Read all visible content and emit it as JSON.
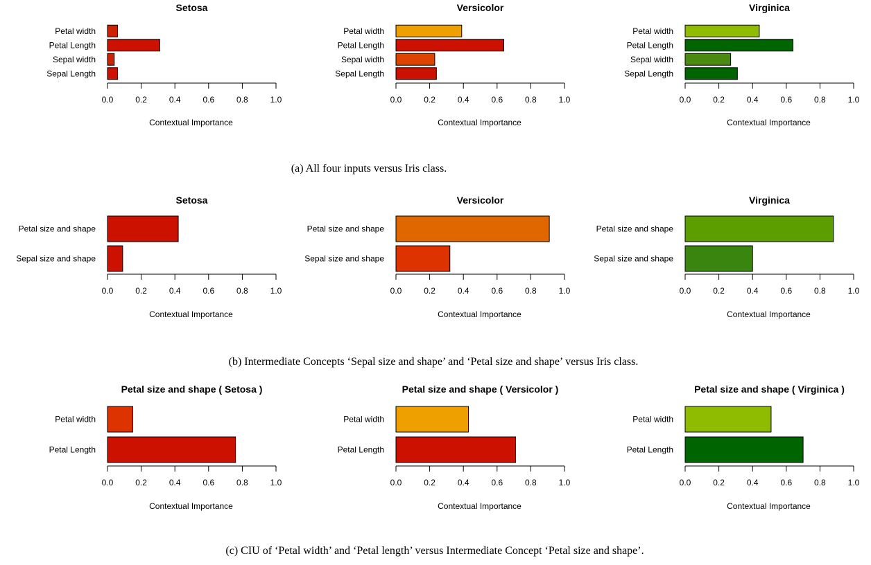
{
  "rows": [
    {
      "caption": "(a) All four inputs versus Iris class.",
      "charts": [
        {
          "title": "Setosa",
          "panel_id": "a-setosa"
        },
        {
          "title": "Versicolor",
          "panel_id": "a-versicolor"
        },
        {
          "title": "Virginica",
          "panel_id": "a-virginica"
        }
      ]
    },
    {
      "caption": "(b) Intermediate Concepts ‘Sepal size and shape’ and ‘Petal size and shape’ versus Iris class.",
      "charts": [
        {
          "title": "Setosa",
          "panel_id": "b-setosa"
        },
        {
          "title": "Versicolor",
          "panel_id": "b-versicolor"
        },
        {
          "title": "Virginica",
          "panel_id": "b-virginica"
        }
      ]
    },
    {
      "caption": "(c) CIU of ‘Petal width’ and ‘Petal length’ versus Intermediate Concept ‘Petal size and shape’.",
      "charts": [
        {
          "title": "Petal size and shape ( Setosa )",
          "panel_id": "c-setosa"
        },
        {
          "title": "Petal size and shape ( Versicolor )",
          "panel_id": "c-versicolor"
        },
        {
          "title": "Petal size and shape ( Virginica )",
          "panel_id": "c-virginica"
        }
      ]
    }
  ],
  "chart_data": [
    {
      "type": "bar",
      "orientation": "horizontal",
      "title": "Setosa",
      "xlabel": "Contextual Importance",
      "xlim": [
        0,
        1
      ],
      "ticks": [
        "0.0",
        "0.2",
        "0.4",
        "0.6",
        "0.8",
        "1.0"
      ],
      "categories": [
        "Petal width",
        "Petal Length",
        "Sepal width",
        "Sepal Length"
      ],
      "values": [
        0.06,
        0.31,
        0.04,
        0.06
      ],
      "colors": [
        "#cc2200",
        "#cc1100",
        "#cc2200",
        "#cc1100"
      ]
    },
    {
      "type": "bar",
      "orientation": "horizontal",
      "title": "Versicolor",
      "xlabel": "Contextual Importance",
      "xlim": [
        0,
        1
      ],
      "ticks": [
        "0.0",
        "0.2",
        "0.4",
        "0.6",
        "0.8",
        "1.0"
      ],
      "categories": [
        "Petal width",
        "Petal Length",
        "Sepal width",
        "Sepal Length"
      ],
      "values": [
        0.39,
        0.64,
        0.23,
        0.24
      ],
      "colors": [
        "#eea000",
        "#cc1100",
        "#dd4400",
        "#cc1100"
      ]
    },
    {
      "type": "bar",
      "orientation": "horizontal",
      "title": "Virginica",
      "xlabel": "Contextual Importance",
      "xlim": [
        0,
        1
      ],
      "ticks": [
        "0.0",
        "0.2",
        "0.4",
        "0.6",
        "0.8",
        "1.0"
      ],
      "categories": [
        "Petal width",
        "Petal Length",
        "Sepal width",
        "Sepal Length"
      ],
      "values": [
        0.44,
        0.64,
        0.27,
        0.31
      ],
      "colors": [
        "#8fbc00",
        "#006400",
        "#4a8a10",
        "#006400"
      ]
    },
    {
      "type": "bar",
      "orientation": "horizontal",
      "title": "Setosa",
      "xlabel": "Contextual Importance",
      "xlim": [
        0,
        1
      ],
      "ticks": [
        "0.0",
        "0.2",
        "0.4",
        "0.6",
        "0.8",
        "1.0"
      ],
      "categories": [
        "Petal size and shape",
        "Sepal size and shape"
      ],
      "values": [
        0.42,
        0.09
      ],
      "colors": [
        "#cc1100",
        "#cc1100"
      ]
    },
    {
      "type": "bar",
      "orientation": "horizontal",
      "title": "Versicolor",
      "xlabel": "Contextual Importance",
      "xlim": [
        0,
        1
      ],
      "ticks": [
        "0.0",
        "0.2",
        "0.4",
        "0.6",
        "0.8",
        "1.0"
      ],
      "categories": [
        "Petal size and shape",
        "Sepal size and shape"
      ],
      "values": [
        0.91,
        0.32
      ],
      "colors": [
        "#e06600",
        "#dd3300"
      ]
    },
    {
      "type": "bar",
      "orientation": "horizontal",
      "title": "Virginica",
      "xlabel": "Contextual Importance",
      "xlim": [
        0,
        1
      ],
      "ticks": [
        "0.0",
        "0.2",
        "0.4",
        "0.6",
        "0.8",
        "1.0"
      ],
      "categories": [
        "Petal size and shape",
        "Sepal size and shape"
      ],
      "values": [
        0.88,
        0.4
      ],
      "colors": [
        "#5c9e00",
        "#3a8510"
      ]
    },
    {
      "type": "bar",
      "orientation": "horizontal",
      "title": "Petal size and shape ( Setosa )",
      "xlabel": "Contextual Importance",
      "xlim": [
        0,
        1
      ],
      "ticks": [
        "0.0",
        "0.2",
        "0.4",
        "0.6",
        "0.8",
        "1.0"
      ],
      "categories": [
        "Petal width",
        "Petal Length"
      ],
      "values": [
        0.15,
        0.76
      ],
      "colors": [
        "#dd3300",
        "#cc1100"
      ]
    },
    {
      "type": "bar",
      "orientation": "horizontal",
      "title": "Petal size and shape ( Versicolor )",
      "xlabel": "Contextual Importance",
      "xlim": [
        0,
        1
      ],
      "ticks": [
        "0.0",
        "0.2",
        "0.4",
        "0.6",
        "0.8",
        "1.0"
      ],
      "categories": [
        "Petal width",
        "Petal Length"
      ],
      "values": [
        0.43,
        0.71
      ],
      "colors": [
        "#eea000",
        "#cc1100"
      ]
    },
    {
      "type": "bar",
      "orientation": "horizontal",
      "title": "Petal size and shape ( Virginica )",
      "xlabel": "Contextual Importance",
      "xlim": [
        0,
        1
      ],
      "ticks": [
        "0.0",
        "0.2",
        "0.4",
        "0.6",
        "0.8",
        "1.0"
      ],
      "categories": [
        "Petal width",
        "Petal Length"
      ],
      "values": [
        0.51,
        0.7
      ],
      "colors": [
        "#8fbc00",
        "#006400"
      ]
    }
  ]
}
